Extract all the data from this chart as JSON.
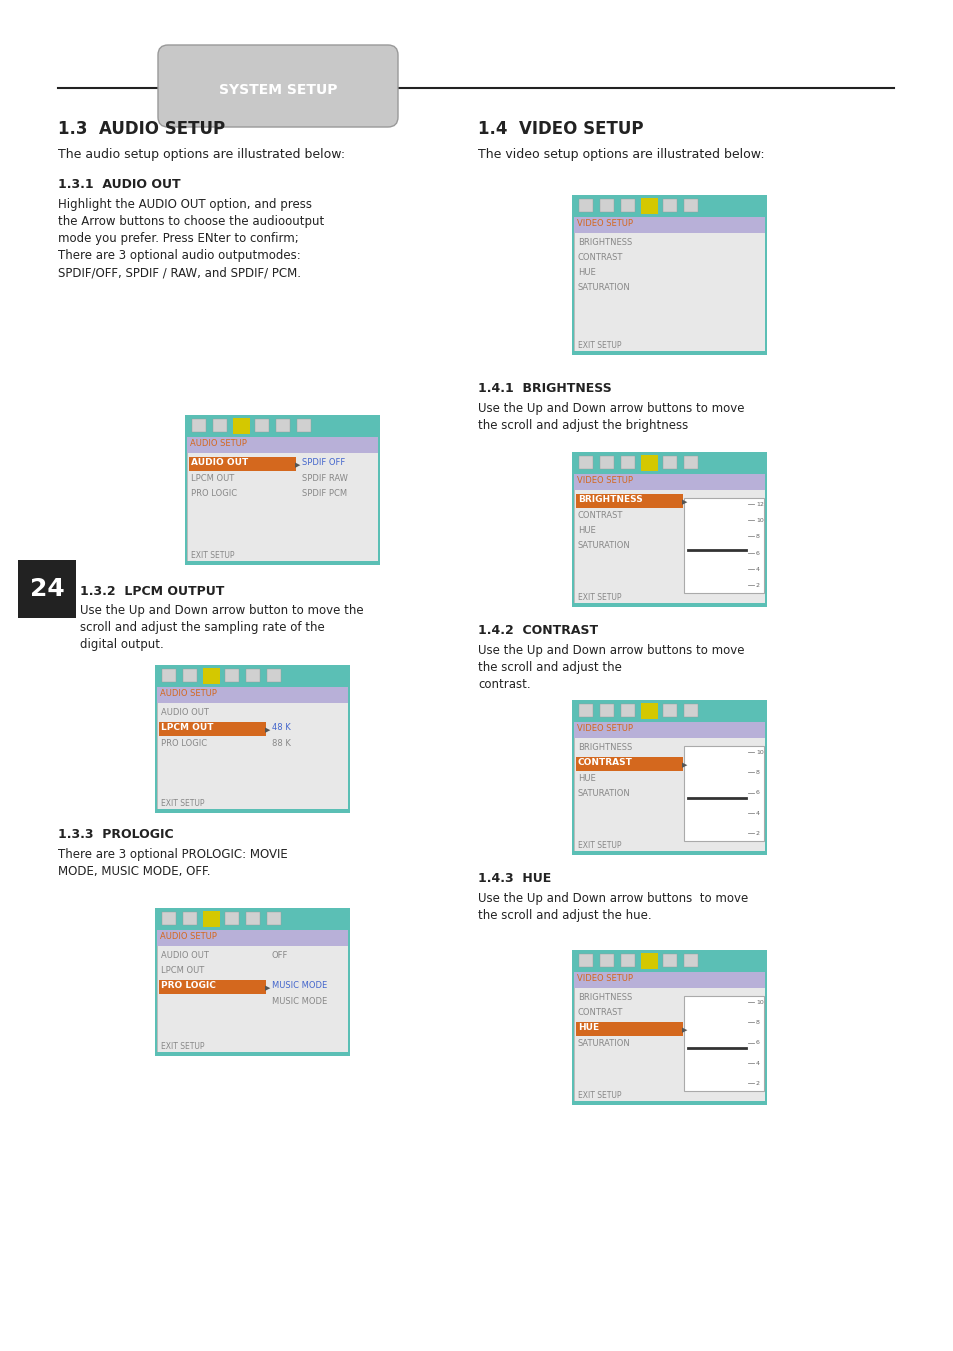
{
  "bg_color": "#ffffff",
  "page_number": "24",
  "header_text": "SYSTEM SETUP",
  "section_13_title": "1.3  AUDIO SETUP",
  "section_13_body": "The audio setup options are illustrated below:",
  "section_131_title": "1.3.1  AUDIO OUT",
  "section_131_body": "Highlight the AUDIO OUT option, and press\nthe Arrow buttons to choose the audiooutput\nmode you prefer. Press ENter to confirm;\nThere are 3 optional audio outputmodes:\nSPDIF/OFF, SPDIF / RAW, and SPDIF/ PCM.",
  "section_132_title": "1.3.2  LPCM OUTPUT",
  "section_132_body": "Use the Up and Down arrow button to move the\nscroll and adjust the sampling rate of the\ndigital output.",
  "section_133_title": "1.3.3  PROLOGIC",
  "section_133_body": "There are 3 optional PROLOGIC: MOVIE\nMODE, MUSIC MODE, OFF.",
  "section_14_title": "1.4  VIDEO SETUP",
  "section_14_body": "The video setup options are illustrated below:",
  "section_141_title": "1.4.1  BRIGHTNESS",
  "section_141_body": "Use the Up and Down arrow buttons to move\nthe scroll and adjust the brightness",
  "section_142_title": "1.4.2  CONTRAST",
  "section_142_body": "Use the Up and Down arrow buttons to move\nthe scroll and adjust the\ncontrast.",
  "section_143_title": "1.4.3  HUE",
  "section_143_body": "Use the Up and Down arrow buttons  to move\nthe scroll and adjust the hue.",
  "teal_color": "#5bbfb5",
  "purple_color": "#b8b0d8",
  "orange_color": "#d4681e",
  "light_gray": "#e8e8e8",
  "white": "#ffffff",
  "blue_text": "#4466cc",
  "dark_text": "#222222",
  "gray_text": "#888888",
  "light_text": "#cccccc",
  "yellow_icon": "#d4c800"
}
